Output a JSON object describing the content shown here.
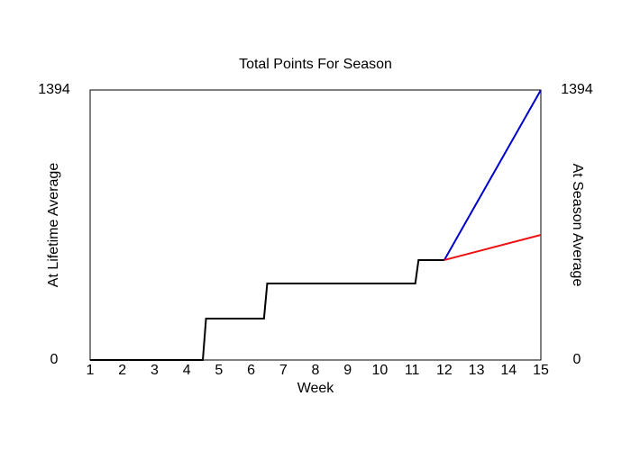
{
  "chart_data": {
    "type": "line",
    "title": "Total Points For Season",
    "xlabel": "Week",
    "ylabel": "At Lifetime Average",
    "ylabel_color": "#0000cc",
    "y2label": "At Season Average",
    "y2label_color": "#ee1111",
    "xlim": [
      1,
      15
    ],
    "xticks": [
      1,
      2,
      3,
      4,
      5,
      6,
      7,
      8,
      9,
      10,
      11,
      12,
      13,
      14,
      15
    ],
    "ylim": [
      0,
      1394
    ],
    "yticks": [
      0,
      1394
    ],
    "y2lim": [
      0,
      1394
    ],
    "y2ticks": [
      0,
      1394
    ],
    "series": [
      {
        "color": "#000000",
        "x": [
          1,
          4.5,
          4.6,
          6.4,
          6.5,
          11.1,
          11.2,
          12
        ],
        "values": [
          0,
          0,
          214,
          214,
          395,
          395,
          516,
          516
        ]
      },
      {
        "color": "#0000cc",
        "x": [
          12,
          15
        ],
        "values": [
          516,
          1394
        ]
      },
      {
        "color": "#ee1111",
        "axis": "y2",
        "x": [
          12,
          15
        ],
        "values": [
          516,
          646
        ]
      }
    ]
  }
}
